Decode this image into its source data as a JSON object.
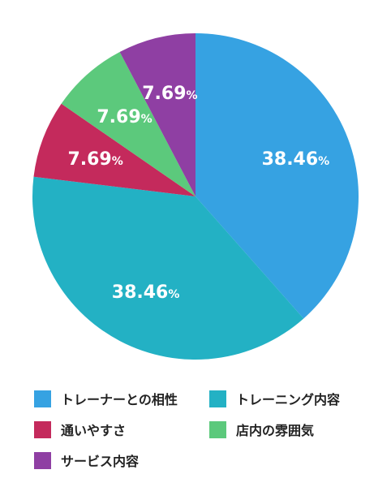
{
  "chart_data": {
    "type": "pie",
    "categories": [
      "トレーナーとの相性",
      "トレーニング内容",
      "通いやすさ",
      "店内の雰囲気",
      "サービス内容"
    ],
    "values": [
      38.46,
      38.46,
      7.69,
      7.69,
      7.69
    ],
    "data_labels": [
      {
        "value": "38.46",
        "unit": "%"
      },
      {
        "value": "38.46",
        "unit": "%"
      },
      {
        "value": "7.69",
        "unit": "%"
      },
      {
        "value": "7.69",
        "unit": "%"
      },
      {
        "value": "7.69",
        "unit": "%"
      }
    ],
    "colors": [
      "#36a2e2",
      "#23b1c4",
      "#c42a5c",
      "#5cc97c",
      "#8f3fa3"
    ],
    "legend_placement": "bottom",
    "start": "top, clockwise"
  }
}
